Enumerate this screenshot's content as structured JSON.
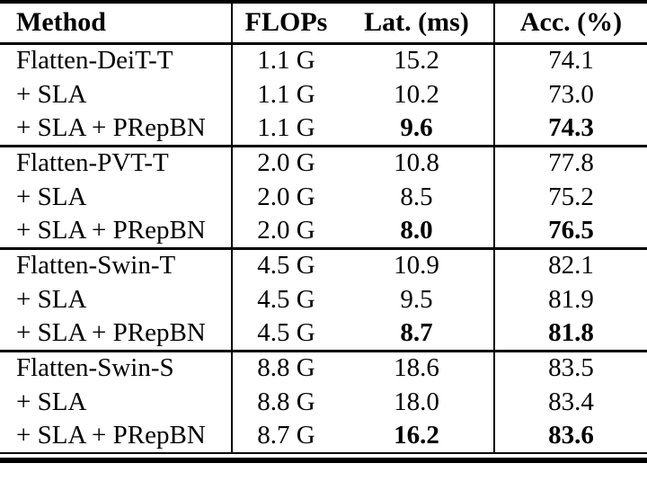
{
  "page": {
    "background_color": "#ffffff",
    "text_color": "#000000",
    "rule_color": "#000000"
  },
  "table": {
    "columns": [
      "Method",
      "FLOPs",
      "Lat. (ms)",
      "Acc. (%)"
    ],
    "groups": [
      {
        "rows": [
          {
            "method": "Flatten-DeiT-T",
            "flops": "1.1 G",
            "lat": "15.2",
            "acc": "74.1",
            "best": false
          },
          {
            "method": "+ SLA",
            "flops": "1.1 G",
            "lat": "10.2",
            "acc": "73.0",
            "best": false
          },
          {
            "method": "+ SLA + PRepBN",
            "flops": "1.1 G",
            "lat": "9.6",
            "acc": "74.3",
            "best": true
          }
        ]
      },
      {
        "rows": [
          {
            "method": "Flatten-PVT-T",
            "flops": "2.0 G",
            "lat": "10.8",
            "acc": "77.8",
            "best": false
          },
          {
            "method": "+ SLA",
            "flops": "2.0 G",
            "lat": "8.5",
            "acc": "75.2",
            "best": false
          },
          {
            "method": "+ SLA + PRepBN",
            "flops": "2.0 G",
            "lat": "8.0",
            "acc": "76.5",
            "best": true
          }
        ]
      },
      {
        "rows": [
          {
            "method": "Flatten-Swin-T",
            "flops": "4.5 G",
            "lat": "10.9",
            "acc": "82.1",
            "best": false
          },
          {
            "method": "+ SLA",
            "flops": "4.5 G",
            "lat": "9.5",
            "acc": "81.9",
            "best": false
          },
          {
            "method": "+ SLA + PRepBN",
            "flops": "4.5 G",
            "lat": "8.7",
            "acc": "81.8",
            "best": true
          }
        ]
      },
      {
        "rows": [
          {
            "method": "Flatten-Swin-S",
            "flops": "8.8 G",
            "lat": "18.6",
            "acc": "83.5",
            "best": false
          },
          {
            "method": "+ SLA",
            "flops": "8.8 G",
            "lat": "18.0",
            "acc": "83.4",
            "best": false
          },
          {
            "method": "+ SLA + PRepBN",
            "flops": "8.7 G",
            "lat": "16.2",
            "acc": "83.6",
            "best": true
          }
        ]
      }
    ]
  },
  "chart_data": {
    "type": "table",
    "title": "",
    "columns": [
      "Method",
      "FLOPs",
      "Lat. (ms)",
      "Acc. (%)"
    ],
    "rows": [
      [
        "Flatten-DeiT-T",
        "1.1 G",
        15.2,
        74.1
      ],
      [
        "+ SLA",
        "1.1 G",
        10.2,
        73.0
      ],
      [
        "+ SLA + PRepBN",
        "1.1 G",
        9.6,
        74.3
      ],
      [
        "Flatten-PVT-T",
        "2.0 G",
        10.8,
        77.8
      ],
      [
        "+ SLA",
        "2.0 G",
        8.5,
        75.2
      ],
      [
        "+ SLA + PRepBN",
        "2.0 G",
        8.0,
        76.5
      ],
      [
        "Flatten-Swin-T",
        "4.5 G",
        10.9,
        82.1
      ],
      [
        "+ SLA",
        "4.5 G",
        9.5,
        81.9
      ],
      [
        "+ SLA + PRepBN",
        "4.5 G",
        8.7,
        81.8
      ],
      [
        "Flatten-Swin-S",
        "8.8 G",
        18.6,
        83.5
      ],
      [
        "+ SLA",
        "8.8 G",
        18.0,
        83.4
      ],
      [
        "+ SLA + PRepBN",
        "8.7 G",
        16.2,
        83.6
      ]
    ],
    "bold_cells_note": "Last row of each 3-row group has bold Lat and Acc values"
  }
}
